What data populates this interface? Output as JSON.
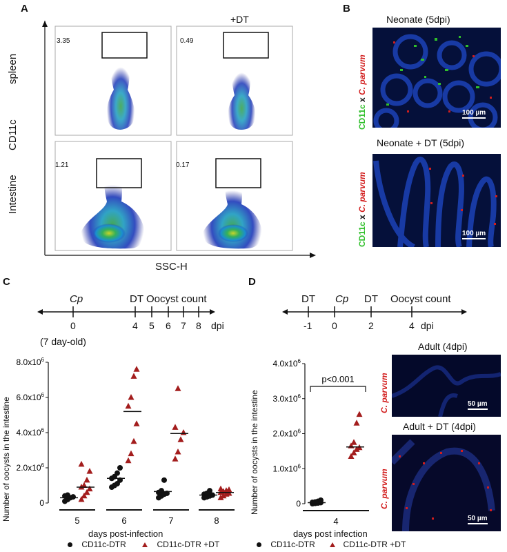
{
  "panels": {
    "a": "A",
    "b": "B",
    "c": "C",
    "d": "D"
  },
  "panel_a": {
    "condition_label": "+DT",
    "row_labels": [
      "spleen",
      "Intestine"
    ],
    "y_axis": "CD11c",
    "x_axis": "SSC-H",
    "gate_values": [
      "3.35",
      "0.49",
      "1.21",
      "0.17"
    ]
  },
  "panel_b": {
    "titles": [
      "Neonate (5dpi)",
      "Neonate + DT (5dpi)"
    ],
    "stain_cd11c": "CD11c",
    "stain_x": "x",
    "stain_cp": "C. parvum",
    "scale_bar": "100 µm"
  },
  "panel_d_images": {
    "titles": [
      "Adult  (4dpi)",
      "Adult + DT (4dpi)"
    ],
    "stain_cp": "C. parvum",
    "scale_bar": "50 µm"
  },
  "timeline_c": {
    "events": [
      "Cp",
      "DT",
      "Oocyst count"
    ],
    "ticks": [
      "0",
      "4",
      "5",
      "6",
      "7",
      "8"
    ],
    "unit": "dpi",
    "note": "(7 day-old)"
  },
  "timeline_d": {
    "events": [
      "DT",
      "Cp",
      "DT",
      "Oocyst count"
    ],
    "ticks": [
      "-1",
      "0",
      "2",
      "4"
    ],
    "unit": "dpi"
  },
  "legend": {
    "ctrl": "CD11c-DTR",
    "dt": "CD11c-DTR +DT"
  },
  "colors": {
    "ctrl": "#111111",
    "dt": "#a31d1d",
    "nucleus": "#1b3fb0",
    "cd11c": "#2fbf2a",
    "parasite": "#d21d1d"
  },
  "chart_data": [
    {
      "type": "scatter",
      "categories": [
        "5",
        "6",
        "7",
        "8"
      ],
      "xlabel": "days post-infection",
      "ylabel": "Number of oocysts in the intestine",
      "ylim": [
        0,
        8000000
      ],
      "y_ticks": [
        "0",
        "2.0x10^6",
        "4.0x10^6",
        "6.0x10^6",
        "8.0x10^6"
      ],
      "series": [
        {
          "name": "CD11c-DTR",
          "values": [
            [
              0.1,
              0.2,
              0.3,
              0.35,
              0.4,
              0.45
            ],
            [
              0.9,
              1.0,
              1.1,
              1.3,
              1.4,
              1.5,
              1.7,
              2.0
            ],
            [
              0.3,
              0.4,
              0.5,
              0.55,
              0.6,
              0.7,
              1.3
            ],
            [
              0.3,
              0.35,
              0.4,
              0.45,
              0.5,
              0.55,
              0.7
            ]
          ],
          "means": [
            0.3,
            1.4,
            0.65,
            0.45
          ]
        },
        {
          "name": "CD11c-DTR +DT",
          "values": [
            [
              0.2,
              0.4,
              0.6,
              0.8,
              0.9,
              1.0,
              1.3,
              1.8,
              2.2
            ],
            [
              2.4,
              2.8,
              3.5,
              4.5,
              5.5,
              6.0,
              7.2,
              7.6
            ],
            [
              2.5,
              2.9,
              3.6,
              4.0,
              4.3,
              6.5
            ],
            [
              0.3,
              0.4,
              0.5,
              0.55,
              0.6,
              0.65,
              0.7,
              0.75,
              0.8
            ]
          ],
          "means": [
            0.9,
            5.2,
            3.95,
            0.6
          ]
        }
      ]
    },
    {
      "type": "scatter",
      "categories": [
        "4"
      ],
      "xlabel": "days post infection",
      "ylabel": "Number of oocysts in the intestine",
      "ylim": [
        0,
        4000000
      ],
      "y_ticks": [
        "0",
        "1.0x10^6",
        "2.0x10^6",
        "3.0x10^6",
        "4.0x10^6"
      ],
      "annotation": "p<0.001",
      "series": [
        {
          "name": "CD11c-DTR",
          "values": [
            [
              0.0,
              0.01,
              0.02,
              0.03,
              0.04,
              0.05,
              0.07,
              0.1
            ]
          ],
          "means": [
            0.03
          ]
        },
        {
          "name": "CD11c-DTR +DT",
          "values": [
            [
              1.35,
              1.45,
              1.55,
              1.6,
              1.65,
              1.75,
              2.3,
              2.55
            ]
          ],
          "means": [
            1.62
          ]
        }
      ]
    }
  ]
}
